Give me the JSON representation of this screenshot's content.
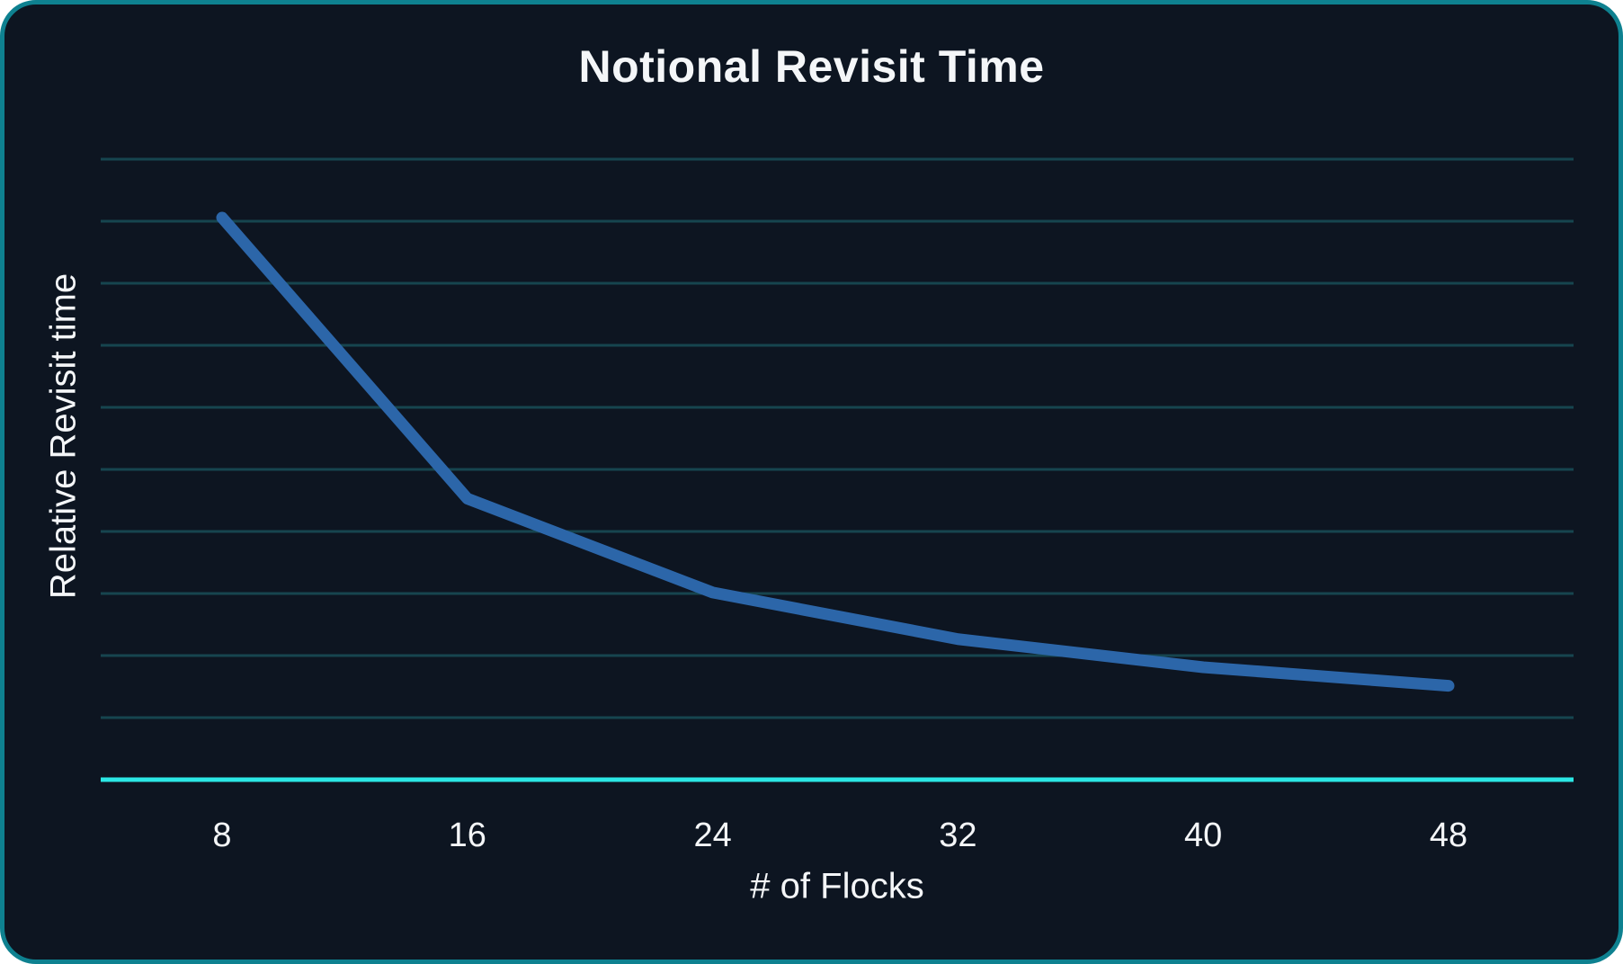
{
  "page": {
    "title": "Notional Revisit Time"
  },
  "chart_data": {
    "type": "line",
    "title": "Notional Revisit Time",
    "xlabel": "# of Flocks",
    "ylabel": "Relative Revisit time",
    "categories": [
      "8",
      "16",
      "24",
      "32",
      "40",
      "48"
    ],
    "series": [
      {
        "name": "Relative revisit time",
        "values": [
          1.0,
          0.5,
          0.333,
          0.25,
          0.2,
          0.167
        ]
      }
    ],
    "ylim": [
      0,
      1.1
    ],
    "y_tick_labels_shown": false,
    "gridlines": "horizontal",
    "gridline_count": 10,
    "legend": "none",
    "colors": {
      "background": "#0d1521",
      "card_border": "#0e8190",
      "gridline": "#16454f",
      "x_axis_line": "#2be7e5",
      "data_line": "#2c66a9",
      "text": "#f4f6f8"
    }
  }
}
